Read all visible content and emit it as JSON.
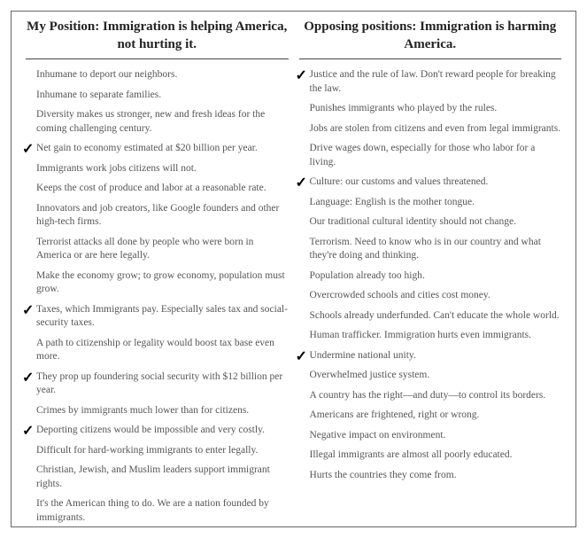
{
  "left": {
    "title": "My Position: Immigration is helping America, not hurting it.",
    "items": [
      {
        "text": "Inhumane to deport our neighbors.",
        "checked": false
      },
      {
        "text": "Inhumane to separate families.",
        "checked": false
      },
      {
        "text": "Diversity makes us stronger, new and fresh ideas for the coming challenging century.",
        "checked": false
      },
      {
        "text": "Net gain to economy estimated at $20 billion per year.",
        "checked": true
      },
      {
        "text": "Immigrants work jobs citizens will not.",
        "checked": false
      },
      {
        "text": "Keeps the cost of produce and labor at a reasonable rate.",
        "checked": false
      },
      {
        "text": "Innovators and job creators, like Google founders and other high-tech firms.",
        "checked": false
      },
      {
        "text": "Terrorist attacks all done by people who were born in America or are here legally.",
        "checked": false
      },
      {
        "text": "Make the economy grow; to grow economy, population must grow.",
        "checked": false
      },
      {
        "text": "Taxes, which Immigrants pay. Especially sales tax and social-security taxes.",
        "checked": true
      },
      {
        "text": "A path to citizenship or legality would boost tax base even more.",
        "checked": false
      },
      {
        "text": "They prop up foundering social security with $12 billion per year.",
        "checked": true
      },
      {
        "text": "Crimes by immigrants much lower than for citizens.",
        "checked": false
      },
      {
        "text": "Deporting citizens would be impossible and very costly.",
        "checked": true
      },
      {
        "text": "Difficult for hard-working immigrants to enter legally.",
        "checked": false
      },
      {
        "text": "Christian, Jewish, and Muslim leaders support immigrant rights.",
        "checked": false
      },
      {
        "text": "It's the American thing to do. We are a nation founded by immigrants.",
        "checked": false
      }
    ]
  },
  "right": {
    "title": "Opposing positions: Immigration is harming America.",
    "items": [
      {
        "text": "Justice and the rule of law. Don't reward people for breaking the law.",
        "checked": true
      },
      {
        "text": "Punishes immigrants who played by the rules.",
        "checked": false
      },
      {
        "text": "Jobs are stolen from citizens and even from legal immigrants.",
        "checked": false
      },
      {
        "text": "Drive wages down, especially for those who labor for a living.",
        "checked": false
      },
      {
        "text": "Culture: our customs and values threatened.",
        "checked": true
      },
      {
        "text": "Language: English is the mother tongue.",
        "checked": false
      },
      {
        "text": "Our traditional cultural identity should not change.",
        "checked": false
      },
      {
        "text": "Terrorism. Need to know who is in our country and what they're doing and thinking.",
        "checked": false
      },
      {
        "text": "Population already too high.",
        "checked": false
      },
      {
        "text": "Overcrowded schools and cities cost money.",
        "checked": false
      },
      {
        "text": "Schools already underfunded. Can't educate the whole world.",
        "checked": false
      },
      {
        "text": "Human trafficker. Immigration hurts even immigrants.",
        "checked": false
      },
      {
        "text": "Undermine national unity.",
        "checked": true
      },
      {
        "text": "Overwhelmed justice system.",
        "checked": false
      },
      {
        "text": "A country has the right—and duty—to control its borders.",
        "checked": false
      },
      {
        "text": "Americans are frightened, right or wrong.",
        "checked": false
      },
      {
        "text": "Negative impact on environment.",
        "checked": false
      },
      {
        "text": "Illegal immigrants are almost all poorly educated.",
        "checked": false
      },
      {
        "text": "Hurts the countries they come from.",
        "checked": false
      }
    ]
  },
  "style": {
    "checkmark_glyph": "✓",
    "text_color": "#555555",
    "header_color": "#222222",
    "border_color": "#666666",
    "body_fontsize": 11.5,
    "header_fontsize": 15
  }
}
